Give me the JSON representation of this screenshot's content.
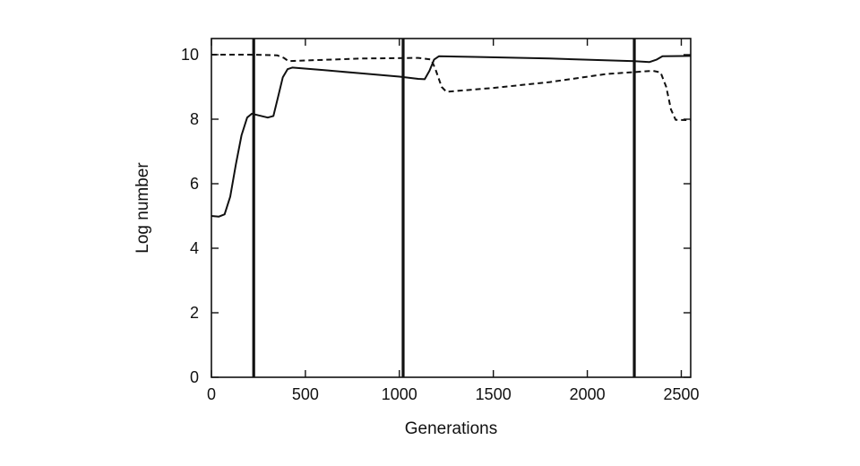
{
  "chart_data": {
    "type": "line",
    "title": "",
    "xlabel": "Generations",
    "ylabel": "Log number",
    "xlim": [
      0,
      2550
    ],
    "ylim": [
      0,
      10.5
    ],
    "xticks": [
      0,
      500,
      1000,
      1500,
      2000,
      2500
    ],
    "yticks": [
      0,
      2,
      4,
      6,
      8,
      10
    ],
    "grid": false,
    "legend": "none",
    "series": [
      {
        "style": "solid",
        "points": [
          [
            0,
            5.0
          ],
          [
            40,
            4.98
          ],
          [
            70,
            5.05
          ],
          [
            100,
            5.6
          ],
          [
            130,
            6.6
          ],
          [
            160,
            7.5
          ],
          [
            190,
            8.05
          ],
          [
            215,
            8.17
          ],
          [
            250,
            8.12
          ],
          [
            300,
            8.05
          ],
          [
            330,
            8.1
          ],
          [
            355,
            8.7
          ],
          [
            380,
            9.3
          ],
          [
            405,
            9.55
          ],
          [
            430,
            9.6
          ],
          [
            600,
            9.52
          ],
          [
            800,
            9.42
          ],
          [
            1000,
            9.32
          ],
          [
            1100,
            9.25
          ],
          [
            1135,
            9.24
          ],
          [
            1160,
            9.5
          ],
          [
            1185,
            9.85
          ],
          [
            1210,
            9.95
          ],
          [
            1400,
            9.93
          ],
          [
            1800,
            9.88
          ],
          [
            2250,
            9.8
          ],
          [
            2330,
            9.77
          ],
          [
            2370,
            9.85
          ],
          [
            2400,
            9.95
          ],
          [
            2550,
            9.96
          ]
        ]
      },
      {
        "style": "dashed",
        "points": [
          [
            0,
            10.0
          ],
          [
            200,
            10.0
          ],
          [
            350,
            9.98
          ],
          [
            385,
            9.9
          ],
          [
            410,
            9.8
          ],
          [
            500,
            9.82
          ],
          [
            800,
            9.88
          ],
          [
            1100,
            9.9
          ],
          [
            1170,
            9.85
          ],
          [
            1195,
            9.5
          ],
          [
            1225,
            9.0
          ],
          [
            1250,
            8.85
          ],
          [
            1500,
            8.97
          ],
          [
            1800,
            9.15
          ],
          [
            2100,
            9.4
          ],
          [
            2350,
            9.5
          ],
          [
            2390,
            9.45
          ],
          [
            2420,
            9.0
          ],
          [
            2445,
            8.3
          ],
          [
            2470,
            7.98
          ],
          [
            2550,
            7.97
          ]
        ]
      }
    ],
    "vertical_lines": [
      225,
      1020,
      2250
    ]
  }
}
